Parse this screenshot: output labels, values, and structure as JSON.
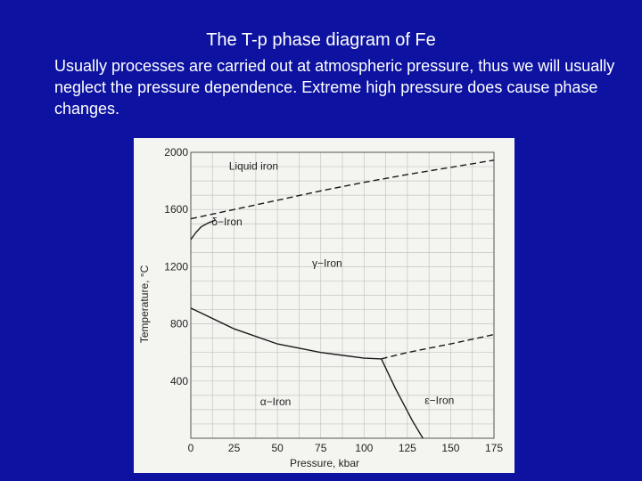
{
  "slide": {
    "title": "The T-p phase diagram of Fe",
    "body": "Usually processes are carried out at atmospheric pressure, thus we will usually neglect the pressure dependence. Extreme high pressure does cause phase changes."
  },
  "chart_data": {
    "type": "line",
    "title": "",
    "xlabel": "Pressure, kbar",
    "ylabel": "Temperature, °C",
    "xlim": [
      0,
      175
    ],
    "ylim": [
      0,
      2000
    ],
    "x_ticks": [
      "0",
      "25",
      "50",
      "75",
      "100",
      "125",
      "150",
      "175"
    ],
    "y_ticks": [
      "400",
      "800",
      "1200",
      "1600",
      "2000"
    ],
    "grid": true,
    "region_labels": [
      {
        "text": "Liquid iron",
        "x": 22,
        "y": 1880
      },
      {
        "text": "δ−Iron",
        "x": 12,
        "y": 1490
      },
      {
        "text": "γ−Iron",
        "x": 70,
        "y": 1200
      },
      {
        "text": "α−Iron",
        "x": 40,
        "y": 230
      },
      {
        "text": "ε−Iron",
        "x": 135,
        "y": 240
      }
    ],
    "series": [
      {
        "values": [
          [
            0,
            1535
          ],
          [
            25,
            1600
          ],
          [
            50,
            1665
          ],
          [
            75,
            1730
          ],
          [
            100,
            1790
          ],
          [
            125,
            1845
          ],
          [
            150,
            1895
          ],
          [
            175,
            1945
          ]
        ],
        "dash": true
      },
      {
        "values": [
          [
            0,
            1390
          ],
          [
            3,
            1440
          ],
          [
            6,
            1480
          ],
          [
            10,
            1505
          ],
          [
            14,
            1525
          ]
        ]
      },
      {
        "values": [
          [
            0,
            910
          ],
          [
            25,
            765
          ],
          [
            50,
            660
          ],
          [
            75,
            600
          ],
          [
            100,
            560
          ],
          [
            110,
            555
          ]
        ]
      },
      {
        "values": [
          [
            110,
            555
          ],
          [
            125,
            600
          ],
          [
            150,
            660
          ],
          [
            175,
            725
          ]
        ],
        "dash": true
      },
      {
        "values": [
          [
            110,
            555
          ],
          [
            118,
            350
          ],
          [
            128,
            120
          ],
          [
            134,
            0
          ]
        ]
      }
    ]
  }
}
